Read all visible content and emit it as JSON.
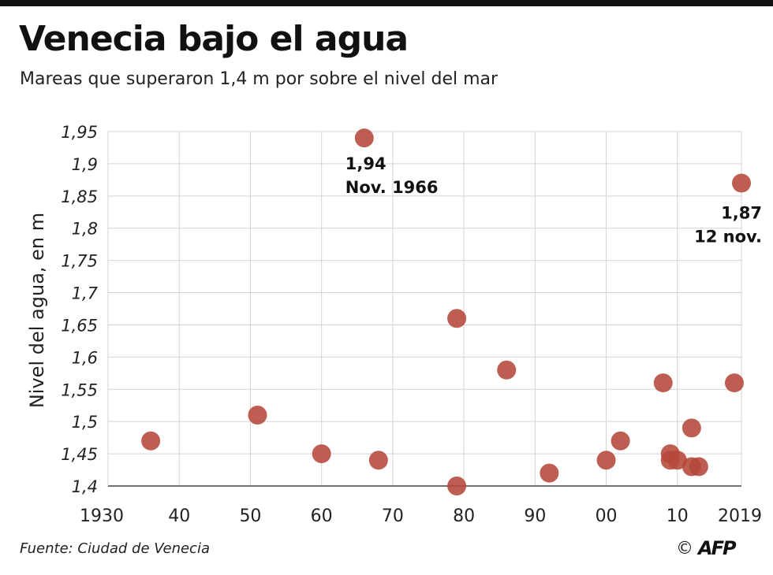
{
  "header": {
    "title": "Venecia bajo el agua",
    "subtitle": "Mareas que superaron 1,4 m por sobre el nivel del mar"
  },
  "footer": {
    "source": "Fuente: Ciudad de Venecia",
    "copyright_symbol": "©",
    "logo_text": "AFP"
  },
  "colors": {
    "point": "#b5483b",
    "grid": "#d4d4d4",
    "axis": "#444444",
    "text": "#111111"
  },
  "chart_data": {
    "type": "scatter",
    "title": "Venecia bajo el agua",
    "subtitle": "Mareas que superaron 1,4 m por sobre el nivel del mar",
    "xlabel": "",
    "ylabel": "Nivel del agua, en m",
    "xlim": [
      1930,
      2019
    ],
    "ylim": [
      1.4,
      1.95
    ],
    "x_ticks": [
      1930,
      1940,
      1950,
      1960,
      1970,
      1980,
      1990,
      2000,
      2010,
      2019
    ],
    "x_tick_labels": [
      "1930",
      "40",
      "50",
      "60",
      "70",
      "80",
      "90",
      "00",
      "10",
      "2019"
    ],
    "y_ticks": [
      1.4,
      1.45,
      1.5,
      1.55,
      1.6,
      1.65,
      1.7,
      1.75,
      1.8,
      1.85,
      1.9,
      1.95
    ],
    "y_tick_labels": [
      "1,4",
      "1,45",
      "1,5",
      "1,55",
      "1,6",
      "1,65",
      "1,7",
      "1,75",
      "1,8",
      "1,85",
      "1,9",
      "1,95"
    ],
    "grid": true,
    "points": [
      {
        "x": 1936,
        "y": 1.47
      },
      {
        "x": 1951,
        "y": 1.51
      },
      {
        "x": 1960,
        "y": 1.45
      },
      {
        "x": 1966,
        "y": 1.94
      },
      {
        "x": 1968,
        "y": 1.44
      },
      {
        "x": 1979,
        "y": 1.66
      },
      {
        "x": 1979,
        "y": 1.4
      },
      {
        "x": 1986,
        "y": 1.58
      },
      {
        "x": 1992,
        "y": 1.42
      },
      {
        "x": 2000,
        "y": 1.44
      },
      {
        "x": 2002,
        "y": 1.47
      },
      {
        "x": 2008,
        "y": 1.56
      },
      {
        "x": 2009,
        "y": 1.45
      },
      {
        "x": 2009,
        "y": 1.44
      },
      {
        "x": 2010,
        "y": 1.44
      },
      {
        "x": 2012,
        "y": 1.49
      },
      {
        "x": 2012,
        "y": 1.43
      },
      {
        "x": 2013,
        "y": 1.43
      },
      {
        "x": 2018,
        "y": 1.56
      },
      {
        "x": 2019,
        "y": 1.87
      }
    ],
    "annotations": [
      {
        "x": 1966,
        "y": 1.94,
        "lines": [
          "1,94",
          "Nov. 1966"
        ],
        "align": "start"
      },
      {
        "x": 2019,
        "y": 1.87,
        "lines": [
          "1,87",
          "12 nov."
        ],
        "align": "end"
      }
    ]
  }
}
